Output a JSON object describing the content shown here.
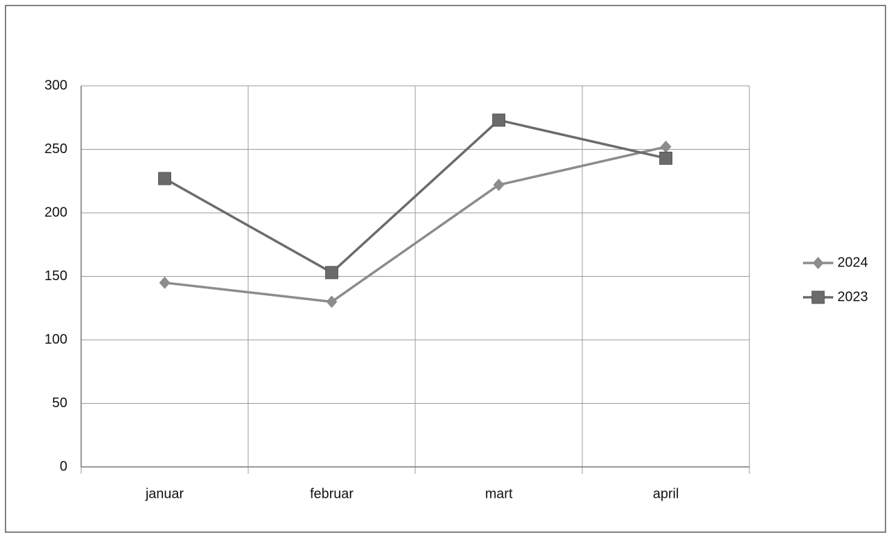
{
  "chart_data": {
    "type": "line",
    "categories": [
      "januar",
      "februar",
      "mart",
      "april"
    ],
    "series": [
      {
        "name": "2024",
        "color": "#8c8c8c",
        "marker": "diamond",
        "values": [
          145,
          130,
          222,
          252
        ]
      },
      {
        "name": "2023",
        "color": "#6b6b6b",
        "marker": "square",
        "values": [
          227,
          153,
          273,
          243
        ]
      }
    ],
    "ylim": [
      0,
      300
    ],
    "yticks": [
      0,
      50,
      100,
      150,
      200,
      250,
      300
    ],
    "grid": true,
    "legend": "right"
  }
}
